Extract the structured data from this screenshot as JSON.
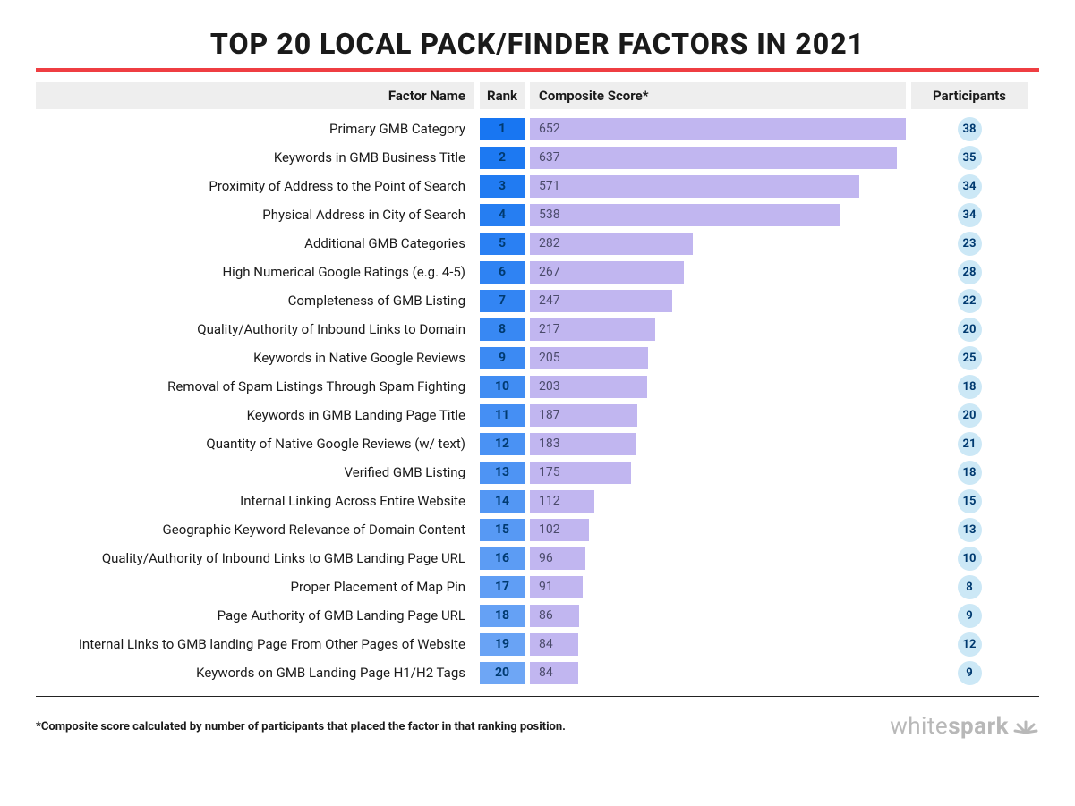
{
  "title": "TOP 20 LOCAL PACK/FINDER FACTORS IN 2021",
  "columns": {
    "factor": "Factor Name",
    "rank": "Rank",
    "score": "Composite Score*",
    "participants": "Participants"
  },
  "max_score": 652,
  "colors": {
    "title_rule": "#ef3e42",
    "header_bg": "#eeeeee",
    "rank_gradient_start": "#1876f2",
    "rank_gradient_end": "#6ea6f5",
    "rank_text": "#003a70",
    "bar_fill": "#c1b6f0",
    "bar_text": "#4a4a6a",
    "participant_circle": "#cce8f6",
    "participant_text": "#003a70",
    "logo_color": "#b8b8b8"
  },
  "rows": [
    {
      "factor": "Primary GMB Category",
      "rank": 1,
      "score": 652,
      "participants": 38
    },
    {
      "factor": "Keywords in GMB Business Title",
      "rank": 2,
      "score": 637,
      "participants": 35
    },
    {
      "factor": "Proximity of Address to the Point of Search",
      "rank": 3,
      "score": 571,
      "participants": 34
    },
    {
      "factor": "Physical Address in City of Search",
      "rank": 4,
      "score": 538,
      "participants": 34
    },
    {
      "factor": "Additional GMB Categories",
      "rank": 5,
      "score": 282,
      "participants": 23
    },
    {
      "factor": "High Numerical Google Ratings (e.g. 4-5)",
      "rank": 6,
      "score": 267,
      "participants": 28
    },
    {
      "factor": "Completeness of GMB Listing",
      "rank": 7,
      "score": 247,
      "participants": 22
    },
    {
      "factor": "Quality/Authority of Inbound Links to Domain",
      "rank": 8,
      "score": 217,
      "participants": 20
    },
    {
      "factor": "Keywords in Native Google Reviews",
      "rank": 9,
      "score": 205,
      "participants": 25
    },
    {
      "factor": "Removal of Spam Listings Through Spam Fighting",
      "rank": 10,
      "score": 203,
      "participants": 18
    },
    {
      "factor": "Keywords in GMB Landing Page Title",
      "rank": 11,
      "score": 187,
      "participants": 20
    },
    {
      "factor": "Quantity of Native Google Reviews (w/ text)",
      "rank": 12,
      "score": 183,
      "participants": 21
    },
    {
      "factor": "Verified GMB Listing",
      "rank": 13,
      "score": 175,
      "participants": 18
    },
    {
      "factor": "Internal Linking Across Entire Website",
      "rank": 14,
      "score": 112,
      "participants": 15
    },
    {
      "factor": "Geographic Keyword Relevance of Domain Content",
      "rank": 15,
      "score": 102,
      "participants": 13
    },
    {
      "factor": "Quality/Authority of Inbound Links to GMB Landing Page URL",
      "rank": 16,
      "score": 96,
      "participants": 10
    },
    {
      "factor": "Proper Placement of Map Pin",
      "rank": 17,
      "score": 91,
      "participants": 8
    },
    {
      "factor": "Page Authority of GMB Landing Page URL",
      "rank": 18,
      "score": 86,
      "participants": 9
    },
    {
      "factor": "Internal Links to GMB landing Page From Other Pages of Website",
      "rank": 19,
      "score": 84,
      "participants": 12
    },
    {
      "factor": "Keywords on GMB Landing Page H1/H2 Tags",
      "rank": 20,
      "score": 84,
      "participants": 9
    }
  ],
  "footnote": "*Composite score calculated by number of participants that placed the factor in that ranking position.",
  "logo": {
    "part1": "white",
    "part2": "spark"
  }
}
